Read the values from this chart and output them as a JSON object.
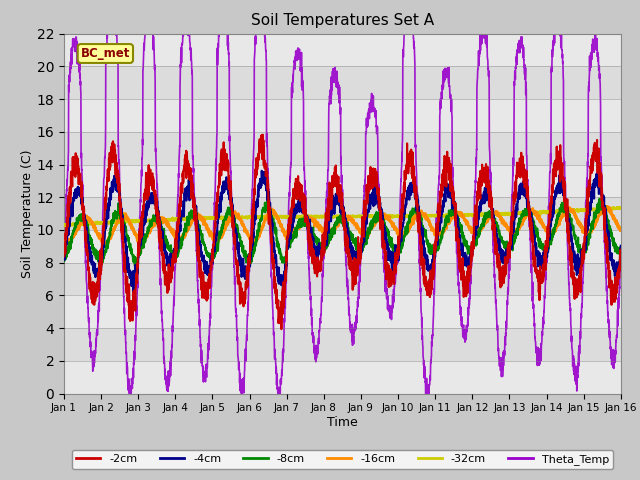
{
  "title": "Soil Temperatures Set A",
  "xlabel": "Time",
  "ylabel": "Soil Temperature (C)",
  "ylim": [
    0,
    22
  ],
  "xlim": [
    0,
    15
  ],
  "xtick_labels": [
    "Jan 1",
    "Jan 2",
    "Jan 3",
    "Jan 4",
    "Jan 5",
    "Jan 6",
    "Jan 7",
    "Jan 8",
    "Jan 9",
    "Jan 10",
    "Jan 11",
    "Jan 12",
    "Jan 13",
    "Jan 14",
    "Jan 15",
    "Jan 16"
  ],
  "annotation": "BC_met",
  "legend_entries": [
    "-2cm",
    "-4cm",
    "-8cm",
    "-16cm",
    "-32cm",
    "Theta_Temp"
  ],
  "line_colors": [
    "#cc0000",
    "#00008b",
    "#008800",
    "#ff8c00",
    "#cccc00",
    "#9900cc"
  ],
  "fig_bg": "#c8c8c8",
  "plot_bg": "#dcdcdc",
  "stripe_color": "#e8e8e8"
}
